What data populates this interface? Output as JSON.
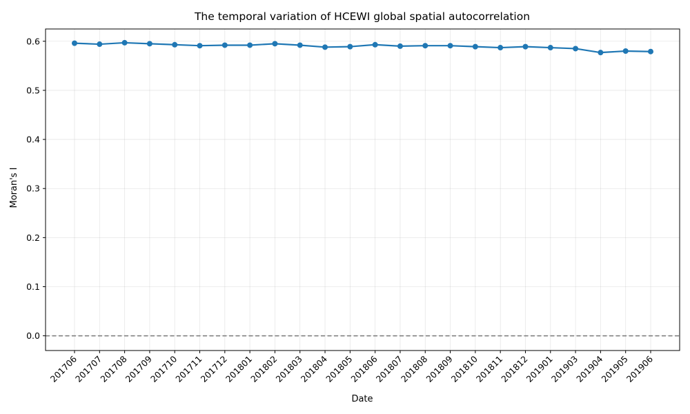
{
  "chart_data": {
    "type": "line",
    "title": "The temporal variation of HCEWI global spatial autocorrelation",
    "xlabel": "Date",
    "ylabel": "Moran's I",
    "ylim": [
      -0.03,
      0.625
    ],
    "yticks": [
      "0.0",
      "0.1",
      "0.2",
      "0.3",
      "0.4",
      "0.5",
      "0.6"
    ],
    "grid": true,
    "reference_line": {
      "y": 0.0,
      "style": "dashed",
      "color": "#808080"
    },
    "color": "#1f77b4",
    "categories": [
      "201706",
      "201707",
      "201708",
      "201709",
      "201710",
      "201711",
      "201712",
      "201801",
      "201802",
      "201803",
      "201804",
      "201805",
      "201806",
      "201807",
      "201808",
      "201809",
      "201810",
      "201811",
      "201812",
      "201901",
      "201903",
      "201904",
      "201905",
      "201906"
    ],
    "values": [
      0.596,
      0.594,
      0.597,
      0.595,
      0.593,
      0.591,
      0.592,
      0.592,
      0.595,
      0.592,
      0.588,
      0.589,
      0.593,
      0.59,
      0.591,
      0.591,
      0.589,
      0.587,
      0.589,
      0.587,
      0.585,
      0.577,
      0.58,
      0.579
    ]
  }
}
